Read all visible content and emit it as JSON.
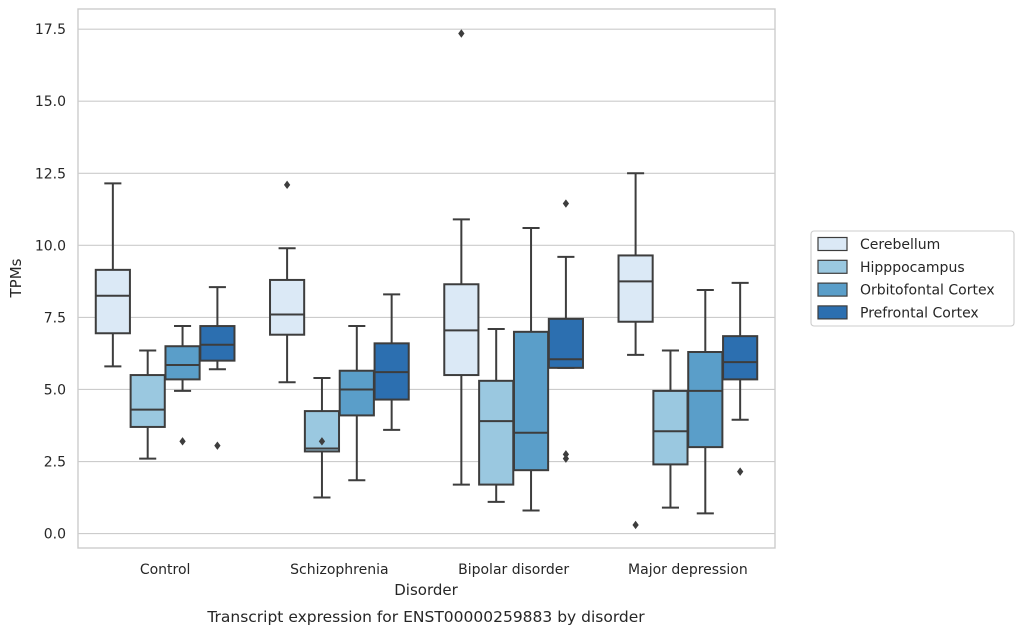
{
  "chart_data": {
    "type": "box",
    "xlabel": "Disorder",
    "ylabel": "TPMs",
    "caption": "Transcript expression for ENST00000259883 by disorder",
    "ylim": [
      -0.5,
      18.2
    ],
    "yticks": [
      0.0,
      2.5,
      5.0,
      7.5,
      10.0,
      12.5,
      15.0,
      17.5
    ],
    "ytick_labels": [
      "0.0",
      "2.5",
      "5.0",
      "7.5",
      "10.0",
      "12.5",
      "15.0",
      "17.5"
    ],
    "grid": "horizontal",
    "legend_position": "right",
    "categories": [
      "Control",
      "Schizophrenia",
      "Bipolar disorder",
      "Major depression"
    ],
    "series": [
      {
        "name": "Cerebellum",
        "color": "#dbe9f6",
        "boxes": [
          {
            "whislo": 5.8,
            "q1": 6.95,
            "med": 8.25,
            "q3": 9.15,
            "whishi": 12.15,
            "fliers": []
          },
          {
            "whislo": 5.25,
            "q1": 6.9,
            "med": 7.6,
            "q3": 8.8,
            "whishi": 9.9,
            "fliers": [
              12.1
            ]
          },
          {
            "whislo": 1.7,
            "q1": 5.5,
            "med": 7.05,
            "q3": 8.65,
            "whishi": 10.9,
            "fliers": [
              17.35
            ]
          },
          {
            "whislo": 6.2,
            "q1": 7.35,
            "med": 8.75,
            "q3": 9.65,
            "whishi": 12.5,
            "fliers": [
              0.3
            ]
          }
        ]
      },
      {
        "name": "Hipppocampus",
        "color": "#9ac8e0",
        "boxes": [
          {
            "whislo": 2.6,
            "q1": 3.7,
            "med": 4.3,
            "q3": 5.5,
            "whishi": 6.35,
            "fliers": []
          },
          {
            "whislo": 1.25,
            "q1": 2.85,
            "med": 2.95,
            "q3": 4.25,
            "whishi": 5.4,
            "fliers": [
              3.2
            ]
          },
          {
            "whislo": 1.1,
            "q1": 1.7,
            "med": 3.9,
            "q3": 5.3,
            "whishi": 7.1,
            "fliers": []
          },
          {
            "whislo": 0.9,
            "q1": 2.4,
            "med": 3.55,
            "q3": 4.95,
            "whishi": 6.35,
            "fliers": []
          }
        ]
      },
      {
        "name": "Orbitofontal Cortex",
        "color": "#5a9ec9",
        "boxes": [
          {
            "whislo": 4.95,
            "q1": 5.35,
            "med": 5.85,
            "q3": 6.5,
            "whishi": 7.2,
            "fliers": [
              3.2
            ]
          },
          {
            "whislo": 1.85,
            "q1": 4.1,
            "med": 5.0,
            "q3": 5.65,
            "whishi": 7.2,
            "fliers": []
          },
          {
            "whislo": 0.8,
            "q1": 2.2,
            "med": 3.5,
            "q3": 7.0,
            "whishi": 10.6,
            "fliers": []
          },
          {
            "whislo": 0.7,
            "q1": 3.0,
            "med": 4.95,
            "q3": 6.3,
            "whishi": 8.45,
            "fliers": []
          }
        ]
      },
      {
        "name": "Prefrontal Cortex",
        "color": "#2c6fb0",
        "boxes": [
          {
            "whislo": 5.7,
            "q1": 6.0,
            "med": 6.55,
            "q3": 7.2,
            "whishi": 8.55,
            "fliers": [
              3.05
            ]
          },
          {
            "whislo": 3.6,
            "q1": 4.65,
            "med": 5.6,
            "q3": 6.6,
            "whishi": 8.3,
            "fliers": []
          },
          {
            "whislo": 5.75,
            "q1": 5.75,
            "med": 6.05,
            "q3": 7.45,
            "whishi": 9.6,
            "fliers": [
              11.45,
              2.75,
              2.6
            ]
          },
          {
            "whislo": 3.95,
            "q1": 5.35,
            "med": 5.95,
            "q3": 6.85,
            "whishi": 8.7,
            "fliers": [
              2.15
            ]
          }
        ]
      }
    ]
  }
}
